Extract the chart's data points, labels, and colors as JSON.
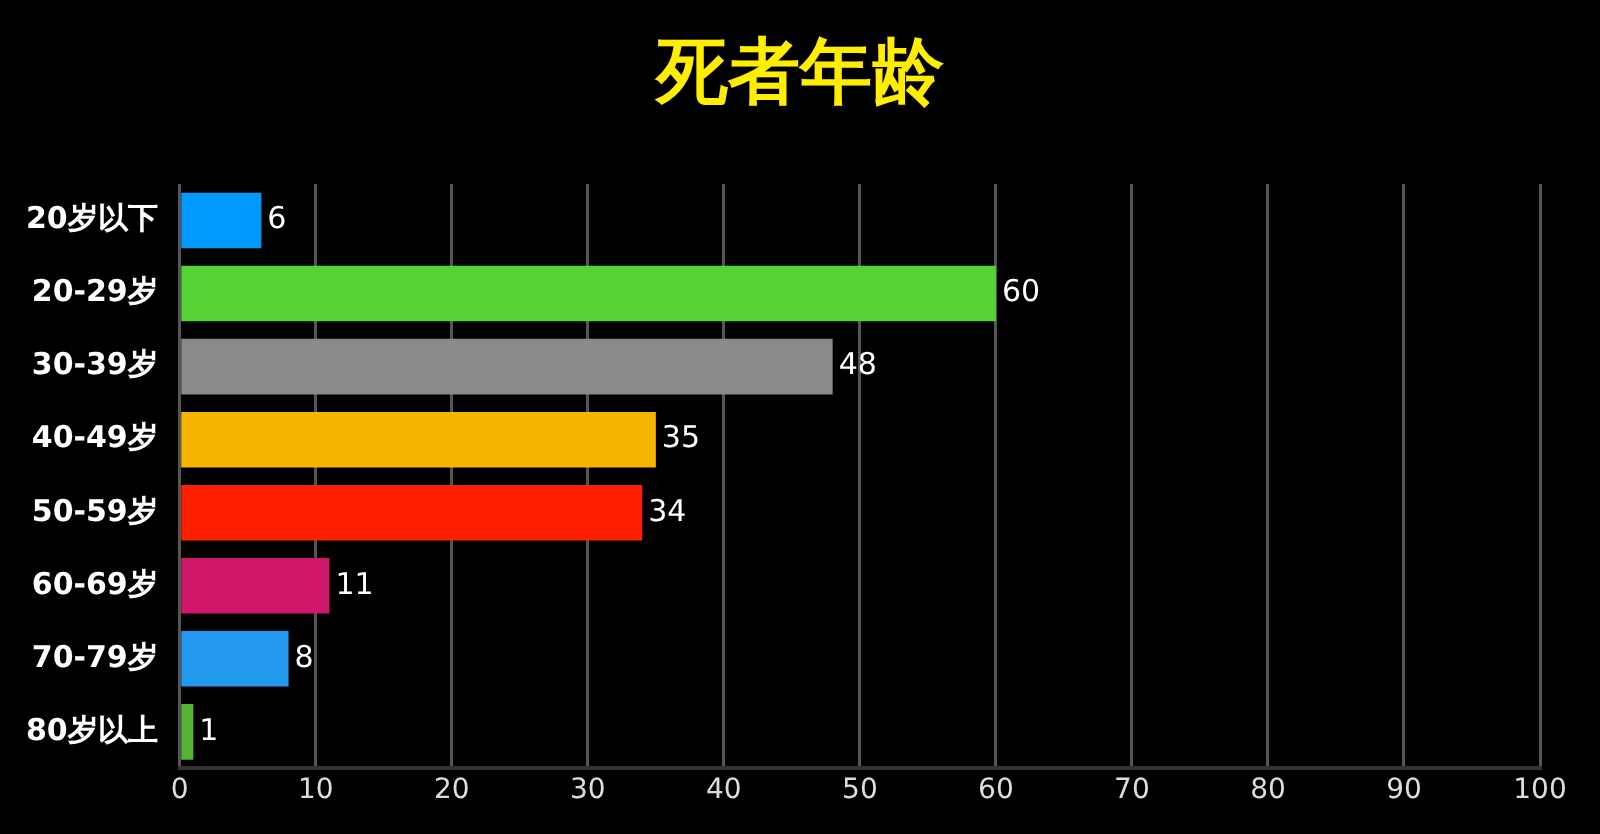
{
  "chart_data": {
    "type": "bar",
    "title": "死者年龄",
    "orientation": "horizontal",
    "categories": [
      "20岁以下",
      "20-29岁",
      "30-39岁",
      "40-49岁",
      "50-59岁",
      "60-69岁",
      "70-79岁",
      "80岁以上"
    ],
    "values": [
      6,
      60,
      48,
      35,
      34,
      11,
      8,
      1
    ],
    "colors": [
      "#0099ff",
      "#55d335",
      "#8a8a8a",
      "#f8b500",
      "#ff2000",
      "#d0186a",
      "#2299ee",
      "#55b335"
    ],
    "xlim": [
      0,
      100
    ],
    "xticks": [
      0,
      10,
      20,
      30,
      40,
      50,
      60,
      70,
      80,
      90,
      100
    ],
    "grid": "x",
    "data_labels": true,
    "legend": false
  }
}
